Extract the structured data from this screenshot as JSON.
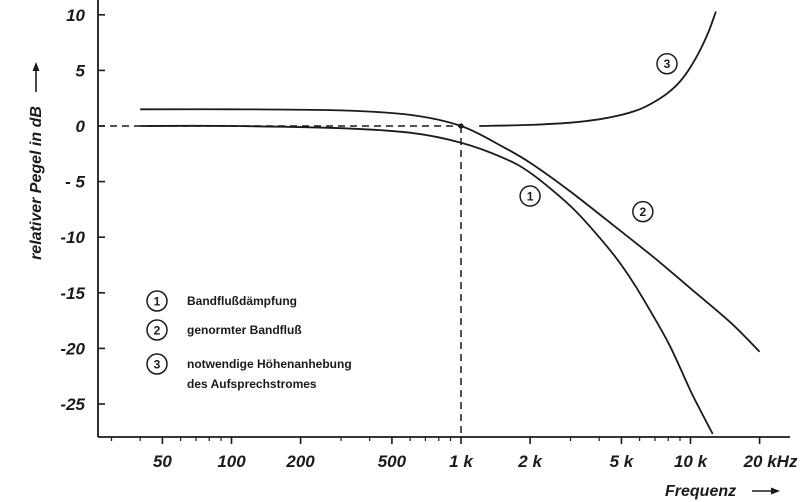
{
  "chart_data": {
    "type": "line",
    "xlabel": "Frequenz",
    "ylabel": "relativer Pegel in dB",
    "x_scale": "log",
    "xlim": [
      28,
      24000
    ],
    "ylim": [
      -28.5,
      10
    ],
    "x_ticks": [
      {
        "value": 50,
        "label": "50"
      },
      {
        "value": 100,
        "label": "100"
      },
      {
        "value": 200,
        "label": "200"
      },
      {
        "value": 500,
        "label": "500"
      },
      {
        "value": 1000,
        "label": "1 k"
      },
      {
        "value": 2000,
        "label": "2 k"
      },
      {
        "value": 5000,
        "label": "5 k"
      },
      {
        "value": 10000,
        "label": "10 k"
      },
      {
        "value": 20000,
        "label": "20 kHz"
      }
    ],
    "y_ticks": [
      {
        "value": 10,
        "label": "10"
      },
      {
        "value": 5,
        "label": "5"
      },
      {
        "value": 0,
        "label": "0"
      },
      {
        "value": -5,
        "label": "- 5"
      },
      {
        "value": -10,
        "label": "-10"
      },
      {
        "value": -15,
        "label": "-15"
      },
      {
        "value": -20,
        "label": "-20"
      },
      {
        "value": -25,
        "label": "-25"
      }
    ],
    "reference": {
      "x": 1000,
      "y": 0
    },
    "grid": false,
    "legend_position": "bottom-left",
    "series": [
      {
        "id": "1",
        "name": "Bandflußdämpfung",
        "marker_label": "1",
        "marker_at": [
          2000,
          -6.3
        ],
        "x": [
          40,
          100,
          300,
          600,
          1000,
          1500,
          2000,
          3000,
          4000,
          5000,
          6000,
          8000,
          10000,
          11000,
          12500
        ],
        "y": [
          0,
          0,
          -0.2,
          -0.6,
          -1.5,
          -2.8,
          -4.2,
          -7.2,
          -10.0,
          -12.5,
          -15.0,
          -19.5,
          -23.8,
          -25.5,
          -27.7
        ]
      },
      {
        "id": "2",
        "name": "genormter Bandfluß",
        "marker_label": "2",
        "marker_at": [
          6200,
          -7.7
        ],
        "x": [
          40,
          100,
          300,
          600,
          1000,
          1500,
          2000,
          3000,
          5000,
          7000,
          10000,
          15000,
          20000
        ],
        "y": [
          1.5,
          1.5,
          1.4,
          1.0,
          0,
          -1.8,
          -3.3,
          -5.9,
          -9.5,
          -11.9,
          -14.6,
          -17.7,
          -20.3
        ]
      },
      {
        "id": "3",
        "name": "notwendige Höhenanhebung des Aufsprechstromes",
        "name_lines": [
          "notwendige Höhenanhebung",
          "des Aufsprechstromes"
        ],
        "marker_label": "3",
        "marker_at": [
          7900,
          5.6
        ],
        "x": [
          1200,
          2000,
          3000,
          4000,
          5000,
          6000,
          7000,
          8000,
          9000,
          10000,
          11000,
          12000,
          12900
        ],
        "y": [
          0,
          0.1,
          0.3,
          0.6,
          1.0,
          1.5,
          2.2,
          3.0,
          4.0,
          5.3,
          6.8,
          8.5,
          10.3
        ]
      }
    ]
  }
}
